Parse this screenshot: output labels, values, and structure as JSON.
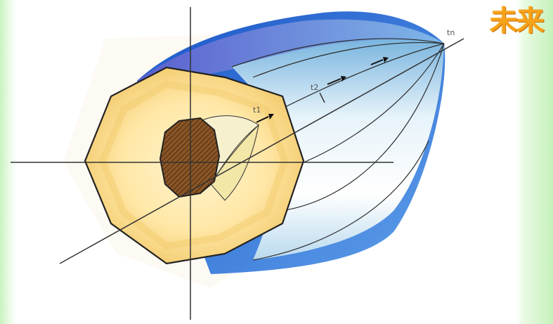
{
  "title": "未来",
  "labels": {
    "t1": "t1",
    "t2": "t2",
    "tn": "tn"
  },
  "colors": {
    "background": "#d9f7d2",
    "outer_octagon": "#fbe39a",
    "inner_core": "#7a4a1e",
    "cone_light": "#dceff8",
    "cone_blue": "#3f78d8",
    "title": "#f6a21a"
  }
}
